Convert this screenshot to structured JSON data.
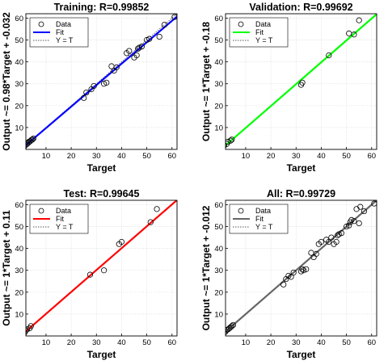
{
  "chart_data": [
    {
      "type": "scatter",
      "title": "Training: R=0.99852",
      "xlabel": "Target",
      "ylabel": "Output ~= 0.98*Target + -0.032",
      "xlim": [
        0,
        60
      ],
      "ylim": [
        0,
        60
      ],
      "xticks": [
        "10",
        "20",
        "30",
        "40",
        "50",
        "60"
      ],
      "yticks": [
        "10",
        "20",
        "30",
        "40",
        "50",
        "60"
      ],
      "fit_color": "#0000ff",
      "fit": {
        "slope": 0.98,
        "intercept": -0.032
      },
      "legend": {
        "position": "top-left",
        "data_label": "Data",
        "fit_label": "Fit",
        "ident_label": "Y = T"
      },
      "points": [
        [
          1.5,
          1.5
        ],
        [
          2,
          2.2
        ],
        [
          2.5,
          2.5
        ],
        [
          3,
          3
        ],
        [
          3.2,
          3.5
        ],
        [
          3.8,
          3.8
        ],
        [
          4.2,
          4.3
        ],
        [
          4.6,
          4.5
        ],
        [
          5,
          5
        ],
        [
          25,
          23.5
        ],
        [
          26,
          26
        ],
        [
          28,
          27.5
        ],
        [
          29,
          29
        ],
        [
          33,
          30
        ],
        [
          34,
          30.5
        ],
        [
          36,
          38
        ],
        [
          37,
          36
        ],
        [
          38,
          37.5
        ],
        [
          42,
          44
        ],
        [
          43,
          45
        ],
        [
          45,
          42
        ],
        [
          46,
          43
        ],
        [
          46.5,
          46
        ],
        [
          47,
          46.5
        ],
        [
          48,
          47
        ],
        [
          50,
          50
        ],
        [
          51,
          50.5
        ],
        [
          55,
          51.5
        ],
        [
          57,
          57
        ],
        [
          61,
          60.5
        ]
      ]
    },
    {
      "type": "scatter",
      "title": "Validation: R=0.99692",
      "xlabel": "Target",
      "ylabel": "Output ~= 1*Target + -0.18",
      "xlim": [
        0,
        60
      ],
      "ylim": [
        0,
        60
      ],
      "xticks": [
        "10",
        "20",
        "30",
        "40",
        "50",
        "60"
      ],
      "yticks": [
        "10",
        "20",
        "30",
        "40",
        "50",
        "60"
      ],
      "fit_color": "#00ff00",
      "fit": {
        "slope": 1,
        "intercept": -0.18
      },
      "legend": {
        "position": "top-left",
        "data_label": "Data",
        "fit_label": "Fit",
        "ident_label": "Y = T"
      },
      "points": [
        [
          1.5,
          1.8
        ],
        [
          2.5,
          2.5
        ],
        [
          3,
          3.5
        ],
        [
          4,
          4
        ],
        [
          4.5,
          4.5
        ],
        [
          32,
          29.5
        ],
        [
          32.5,
          30.5
        ],
        [
          43,
          43
        ],
        [
          51,
          53
        ],
        [
          53,
          52.5
        ],
        [
          55,
          59
        ]
      ]
    },
    {
      "type": "scatter",
      "title": "Test: R=0.99645",
      "xlabel": "Target",
      "ylabel": "Output ~= 1*Target + 0.11",
      "xlim": [
        0,
        60
      ],
      "ylim": [
        0,
        60
      ],
      "xticks": [
        "10",
        "20",
        "30",
        "40",
        "50",
        "60"
      ],
      "yticks": [
        "10",
        "20",
        "30",
        "40",
        "50",
        "60"
      ],
      "fit_color": "#ff0000",
      "fit": {
        "slope": 1,
        "intercept": 0.11
      },
      "legend": {
        "position": "top-left",
        "data_label": "Data",
        "fit_label": "Fit",
        "ident_label": "Y = T"
      },
      "points": [
        [
          1.5,
          1.5
        ],
        [
          2,
          2.5
        ],
        [
          2.5,
          3
        ],
        [
          3.5,
          3.5
        ],
        [
          4,
          4.5
        ],
        [
          27.5,
          28
        ],
        [
          33,
          30
        ],
        [
          39,
          42
        ],
        [
          40,
          43
        ],
        [
          51.5,
          52
        ],
        [
          54,
          58
        ]
      ]
    },
    {
      "type": "scatter",
      "title": "All: R=0.99729",
      "xlabel": "Target",
      "ylabel": "Output ~= 1*Target + -0.012",
      "xlim": [
        0,
        60
      ],
      "ylim": [
        0,
        60
      ],
      "xticks": [
        "10",
        "20",
        "30",
        "40",
        "50",
        "60"
      ],
      "yticks": [
        "10",
        "20",
        "30",
        "40",
        "50",
        "60"
      ],
      "fit_color": "#666666",
      "fit": {
        "slope": 1,
        "intercept": -0.012
      },
      "legend": {
        "position": "top-left",
        "data_label": "Data",
        "fit_label": "Fit",
        "ident_label": "Y = T"
      },
      "points": [
        [
          1.5,
          1.5
        ],
        [
          2,
          2
        ],
        [
          2.5,
          2.8
        ],
        [
          3,
          3
        ],
        [
          3.5,
          3.5
        ],
        [
          4,
          4
        ],
        [
          4.5,
          4.5
        ],
        [
          5,
          5
        ],
        [
          25,
          23.5
        ],
        [
          26,
          26
        ],
        [
          27,
          27.5
        ],
        [
          28,
          27
        ],
        [
          29,
          29
        ],
        [
          32,
          29.5
        ],
        [
          32.5,
          30.5
        ],
        [
          33,
          30
        ],
        [
          34,
          30.5
        ],
        [
          36,
          38
        ],
        [
          37,
          36
        ],
        [
          38,
          37.5
        ],
        [
          39,
          42
        ],
        [
          40,
          43
        ],
        [
          42,
          44
        ],
        [
          43,
          43
        ],
        [
          44,
          45
        ],
        [
          45,
          42
        ],
        [
          46,
          43
        ],
        [
          46.5,
          46
        ],
        [
          47,
          46.5
        ],
        [
          48,
          47
        ],
        [
          50,
          50
        ],
        [
          51,
          50.5
        ],
        [
          51.5,
          52
        ],
        [
          52,
          53
        ],
        [
          53,
          52.5
        ],
        [
          54,
          58
        ],
        [
          55,
          51.5
        ],
        [
          55.5,
          59
        ],
        [
          57,
          57
        ],
        [
          61,
          60.5
        ]
      ]
    }
  ]
}
